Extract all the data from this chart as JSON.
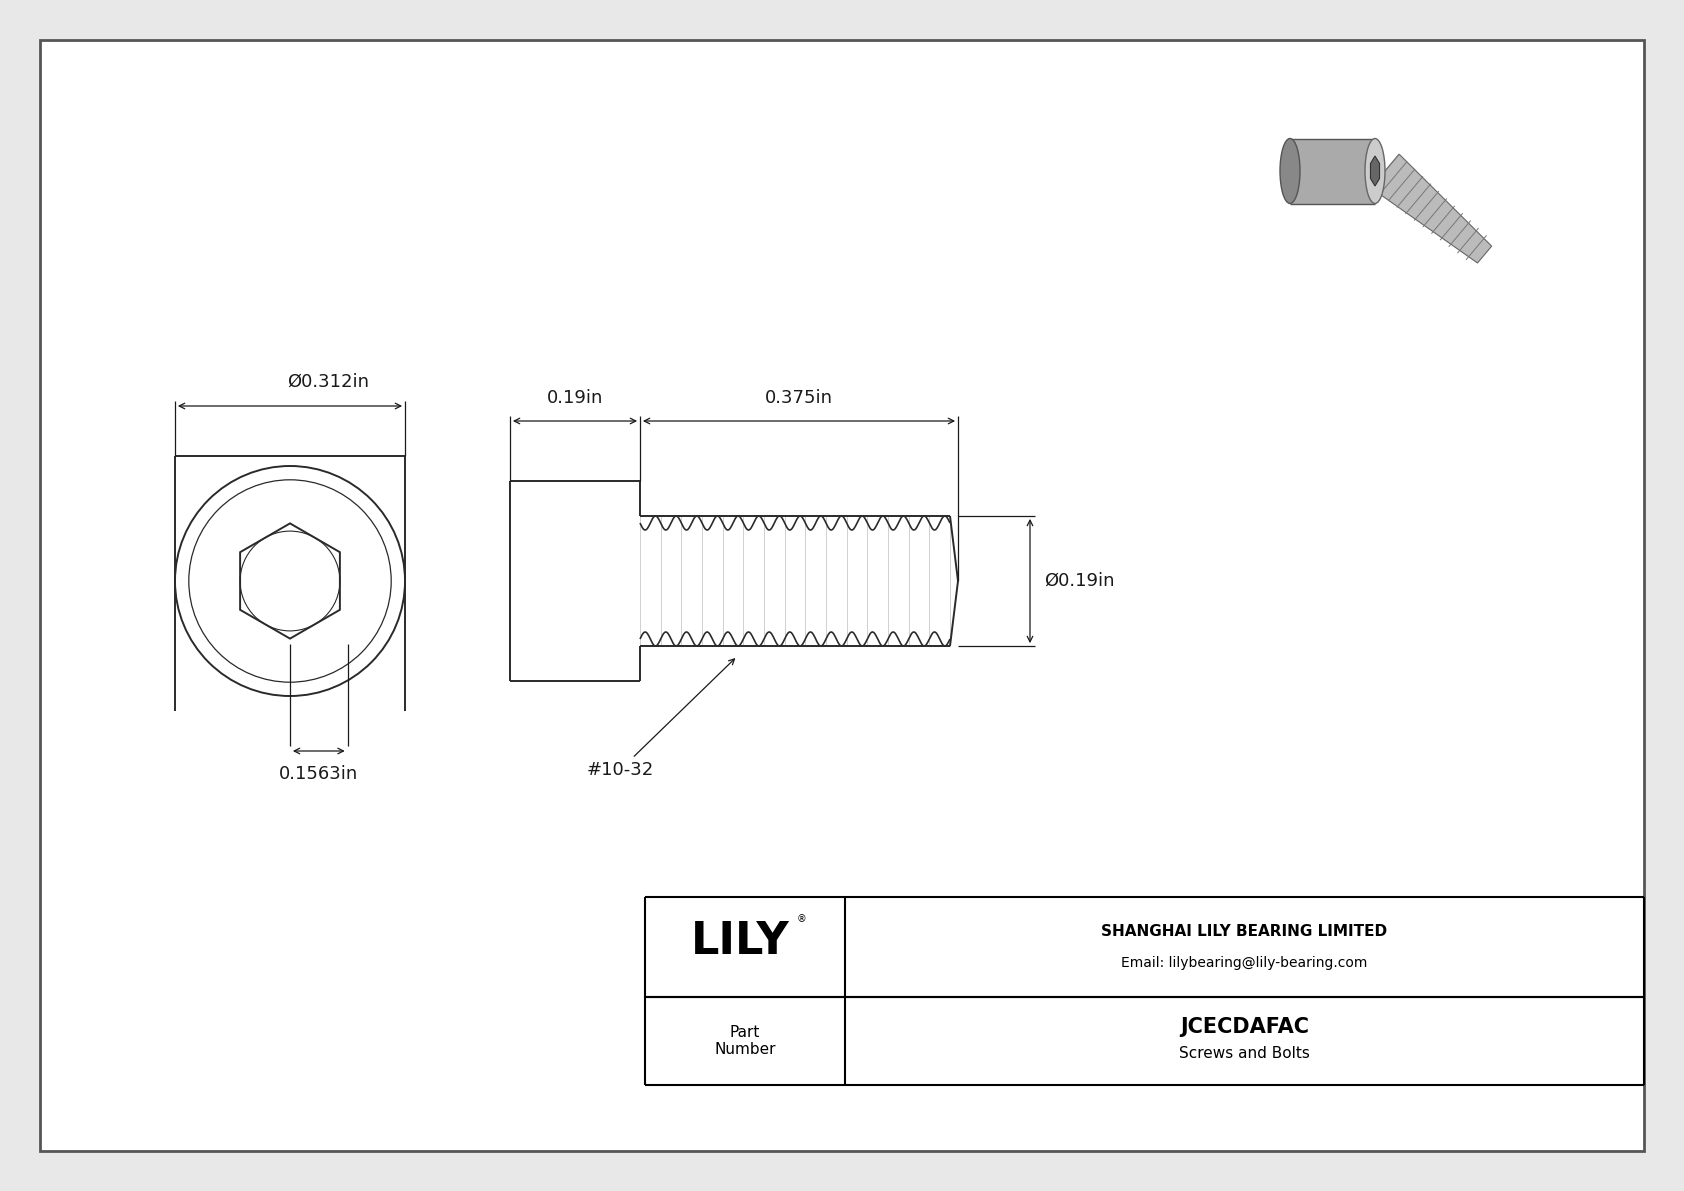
{
  "bg_color": "#e8e8e8",
  "border_color": "#000000",
  "line_color": "#2a2a2a",
  "dim_color": "#1a1a1a",
  "title_company": "SHANGHAI LILY BEARING LIMITED",
  "title_email": "Email: lilybearing@lily-bearing.com",
  "part_number": "JCECDAFAC",
  "part_category": "Screws and Bolts",
  "part_label": "Part\nNumber",
  "lily_text": "LILY",
  "reg_mark": "®",
  "dim_head_diameter": "Ø0.312in",
  "dim_socket_diameter": "0.1563in",
  "dim_head_length": "0.19in",
  "dim_shank_length": "0.375in",
  "dim_shank_diameter": "Ø0.19in",
  "dim_thread_label": "#10-32",
  "font_size_dims": 13,
  "font_size_logo": 32,
  "font_size_company": 11,
  "font_size_part": 15
}
